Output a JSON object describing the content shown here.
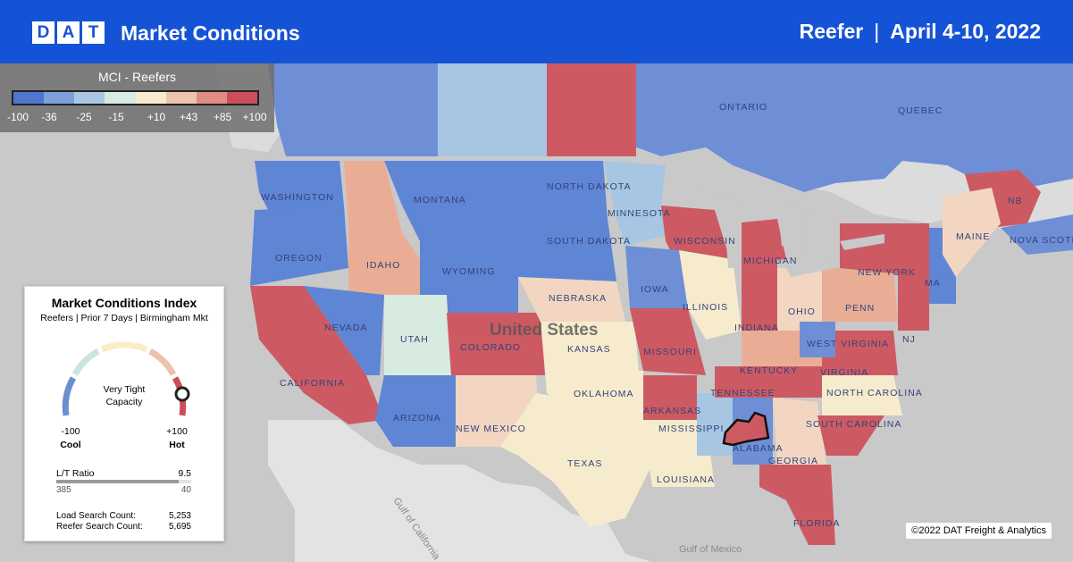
{
  "header": {
    "logo_letters": [
      "D",
      "A",
      "T"
    ],
    "title": "Market Conditions",
    "equipment": "Reefer",
    "separator": "|",
    "date_range": "April 4-10, 2022"
  },
  "legend": {
    "title": "MCI - Reefers",
    "ticks": [
      "-100",
      "-36",
      "-25",
      "-15",
      "+10",
      "+43",
      "+85",
      "+100"
    ],
    "colors": [
      "#4f75cf",
      "#7da0dc",
      "#a9c7e2",
      "#d6ebe2",
      "#f6eccd",
      "#eec3ad",
      "#e08c83",
      "#cc4e5a"
    ]
  },
  "panel": {
    "title": "Market Conditions Index",
    "subtitle": "Reefers | Prior 7 Days | Birmingham Mkt",
    "gauge_value": 100,
    "gauge_text_line1": "Very Tight",
    "gauge_text_line2": "Capacity",
    "min_label": "-100",
    "max_label": "+100",
    "min_caption": "Cool",
    "max_caption": "Hot",
    "lt_ratio_label": "L/T Ratio",
    "lt_ratio_value": "9.5",
    "loads_value": "385",
    "trucks_value": "40",
    "load_search_label": "Load Search Count:",
    "load_search_value": "5,253",
    "reefer_search_label": "Reefer Search Count:",
    "reefer_search_value": "5,695"
  },
  "map": {
    "country_label": "United States",
    "state_labels": [
      "WASHINGTON",
      "MONTANA",
      "NORTH DAKOTA",
      "MINNESOTA",
      "OREGON",
      "IDAHO",
      "SOUTH DAKOTA",
      "WYOMING",
      "WISCONSIN",
      "MICHIGAN",
      "NEW YORK",
      "MAINE",
      "IOWA",
      "NEBRASKA",
      "NEVADA",
      "UTAH",
      "COLORADO",
      "ILLINOIS",
      "INDIANA",
      "OHIO",
      "PENN",
      "KANSAS",
      "MISSOURI",
      "KENTUCKY",
      "WEST VIRGINIA",
      "VIRGINIA",
      "CALIFORNIA",
      "OKLAHOMA",
      "TENNESSEE",
      "NORTH CAROLINA",
      "ARIZONA",
      "NEW MEXICO",
      "ARKANSAS",
      "SOUTH CAROLINA",
      "MISSISSIPPI",
      "ALABAMA",
      "GEORGIA",
      "TEXAS",
      "LOUISIANA",
      "FLORIDA",
      "ONTARIO",
      "QUEBEC",
      "NB",
      "NOVA SCOTIA",
      "NJ",
      "MA"
    ],
    "water_labels": [
      "Gulf of California",
      "Gulf of Mexico"
    ],
    "highlight_market": "Birmingham"
  },
  "copyright": "©2022 DAT Freight & Analytics"
}
